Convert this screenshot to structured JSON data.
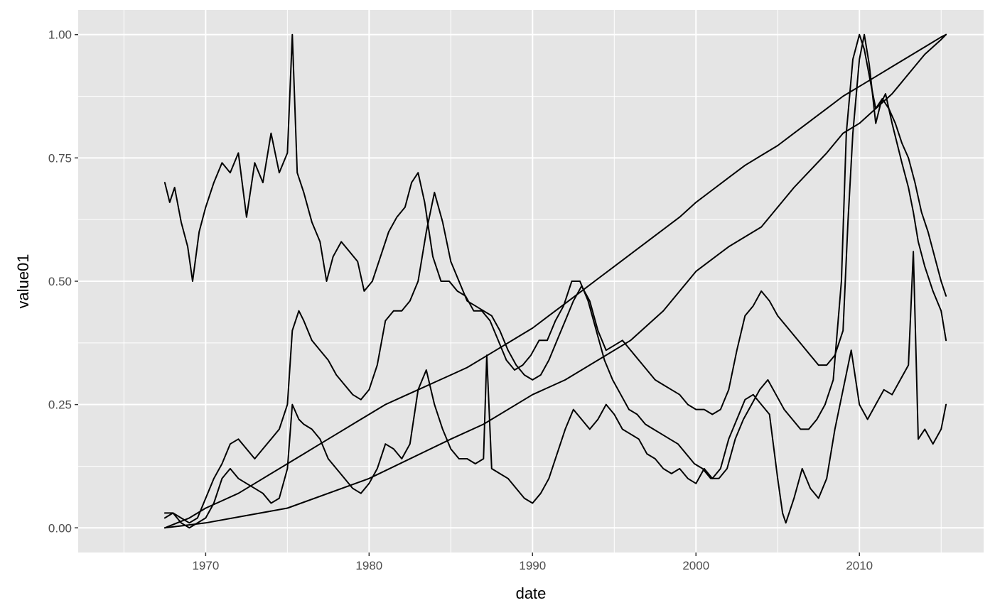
{
  "chart_data": {
    "type": "line",
    "title": "",
    "xlabel": "date",
    "ylabel": "value01",
    "xlim": [
      1962.2,
      2017.6
    ],
    "ylim": [
      -0.05,
      1.05
    ],
    "x_ticks": [
      {
        "value": 1970,
        "label": "1970"
      },
      {
        "value": 1980,
        "label": "1980"
      },
      {
        "value": 1990,
        "label": "1990"
      },
      {
        "value": 2000,
        "label": "2000"
      },
      {
        "value": 2010,
        "label": "2010"
      }
    ],
    "y_ticks": [
      {
        "value": 0,
        "label": "0.00"
      },
      {
        "value": 0.25,
        "label": "0.25"
      },
      {
        "value": 0.5,
        "label": "0.50"
      },
      {
        "value": 0.75,
        "label": "0.75"
      },
      {
        "value": 1,
        "label": "1.00"
      }
    ],
    "grid": true,
    "legend": "none",
    "colors": {
      "panel": "#e5e5e5",
      "grid": "#ffffff",
      "line": "#000000"
    },
    "series": [
      {
        "x": [
          1967.5,
          1969,
          1970,
          1971,
          1972,
          1973,
          1974,
          1975,
          1976,
          1977,
          1978,
          1979,
          1980,
          1981,
          1982,
          1983,
          1984,
          1985,
          1986,
          1987,
          1988,
          1989,
          1990,
          1991,
          1992,
          1993,
          1994,
          1995,
          1996,
          1997,
          1998,
          1999,
          2000,
          2001,
          2002,
          2003,
          2004,
          2005,
          2006,
          2007,
          2008,
          2009,
          2010,
          2011,
          2012,
          2013,
          2014,
          2015,
          2015.3
        ],
        "y": [
          0.0,
          0.02,
          0.04,
          0.055,
          0.07,
          0.09,
          0.11,
          0.13,
          0.15,
          0.17,
          0.19,
          0.21,
          0.23,
          0.25,
          0.265,
          0.28,
          0.295,
          0.31,
          0.325,
          0.345,
          0.365,
          0.385,
          0.405,
          0.43,
          0.455,
          0.48,
          0.505,
          0.53,
          0.555,
          0.58,
          0.605,
          0.63,
          0.66,
          0.685,
          0.71,
          0.735,
          0.755,
          0.775,
          0.8,
          0.825,
          0.85,
          0.875,
          0.895,
          0.915,
          0.935,
          0.955,
          0.975,
          0.995,
          1.0
        ]
      },
      {
        "x": [
          1967.5,
          1970,
          1975,
          1980,
          1985,
          1987,
          1990,
          1992,
          1994,
          1996,
          1998,
          2000,
          2002,
          2004,
          2006,
          2008,
          2009,
          2010,
          2011,
          2012,
          2013,
          2014,
          2015,
          2015.3
        ],
        "y": [
          0.0,
          0.01,
          0.04,
          0.1,
          0.18,
          0.21,
          0.27,
          0.3,
          0.34,
          0.38,
          0.44,
          0.52,
          0.57,
          0.61,
          0.69,
          0.76,
          0.8,
          0.82,
          0.85,
          0.88,
          0.92,
          0.96,
          0.99,
          1.0
        ]
      },
      {
        "x": [
          1967.5,
          1967.8,
          1968.1,
          1968.5,
          1968.9,
          1969.2,
          1969.6,
          1970,
          1970.5,
          1971,
          1971.5,
          1972,
          1972.5,
          1973,
          1973.5,
          1974,
          1974.5,
          1975,
          1975.3,
          1975.6,
          1976,
          1976.5,
          1977,
          1977.4,
          1977.8,
          1978.3,
          1978.8,
          1979.3,
          1979.7,
          1980.2,
          1980.7,
          1981.2,
          1981.7,
          1982.2,
          1982.6,
          1983,
          1983.4,
          1983.9,
          1984.4,
          1984.9,
          1985.4,
          1985.9,
          1986.4,
          1986.9,
          1987.4,
          1987.9,
          1988.4,
          1988.9,
          1989.4,
          1989.9,
          1990.4,
          1990.9,
          1991.4,
          1991.9,
          1992.4,
          1992.9,
          1993.4,
          1993.9,
          1994.4,
          1994.9,
          1995.4,
          1995.9,
          1996.4,
          1996.9,
          1997.4,
          1997.9,
          1998.4,
          1998.9,
          1999.4,
          1999.9,
          2000.4,
          2000.9,
          2001.4,
          2001.9,
          2002.4,
          2002.9,
          2003.4,
          2003.9,
          2004.4,
          2004.9,
          2005.4,
          2005.9,
          2006.4,
          2006.9,
          2007.4,
          2007.9,
          2008.4,
          2008.9,
          2009.2,
          2009.6,
          2010,
          2010.3,
          2010.7,
          2011,
          2011.4,
          2011.8,
          2012.2,
          2012.6,
          2013,
          2013.4,
          2013.8,
          2014.2,
          2014.6,
          2015,
          2015.3
        ],
        "y": [
          0.7,
          0.66,
          0.69,
          0.62,
          0.57,
          0.5,
          0.6,
          0.65,
          0.7,
          0.74,
          0.72,
          0.76,
          0.63,
          0.74,
          0.7,
          0.8,
          0.72,
          0.76,
          1.0,
          0.72,
          0.68,
          0.62,
          0.58,
          0.5,
          0.55,
          0.58,
          0.56,
          0.54,
          0.48,
          0.5,
          0.55,
          0.6,
          0.63,
          0.65,
          0.7,
          0.72,
          0.66,
          0.55,
          0.5,
          0.5,
          0.48,
          0.47,
          0.44,
          0.44,
          0.42,
          0.38,
          0.34,
          0.32,
          0.33,
          0.35,
          0.38,
          0.38,
          0.42,
          0.45,
          0.5,
          0.5,
          0.46,
          0.4,
          0.34,
          0.3,
          0.27,
          0.24,
          0.23,
          0.21,
          0.2,
          0.19,
          0.18,
          0.17,
          0.15,
          0.13,
          0.12,
          0.1,
          0.1,
          0.12,
          0.18,
          0.22,
          0.25,
          0.28,
          0.3,
          0.27,
          0.24,
          0.22,
          0.2,
          0.2,
          0.22,
          0.25,
          0.3,
          0.5,
          0.8,
          0.95,
          1.0,
          0.97,
          0.9,
          0.85,
          0.87,
          0.85,
          0.82,
          0.78,
          0.75,
          0.7,
          0.64,
          0.6,
          0.55,
          0.5,
          0.47
        ]
      },
      {
        "x": [
          1967.5,
          1968,
          1968.5,
          1969,
          1969.5,
          1970,
          1970.5,
          1971,
          1971.5,
          1972,
          1972.5,
          1973,
          1973.5,
          1974,
          1974.5,
          1975,
          1975.3,
          1975.7,
          1976,
          1976.5,
          1977,
          1977.5,
          1978,
          1978.5,
          1979,
          1979.5,
          1980,
          1980.5,
          1981,
          1981.5,
          1982,
          1982.5,
          1983,
          1983.5,
          1984,
          1984.5,
          1985,
          1985.5,
          1986,
          1986.5,
          1987,
          1987.5,
          1988,
          1988.5,
          1989,
          1989.5,
          1990,
          1990.5,
          1991,
          1991.5,
          1992,
          1992.5,
          1993,
          1993.5,
          1994,
          1994.5,
          1995,
          1995.5,
          1996,
          1996.5,
          1997,
          1997.5,
          1998,
          1998.5,
          1999,
          1999.5,
          2000,
          2000.5,
          2001,
          2001.5,
          2002,
          2002.5,
          2003,
          2003.5,
          2004,
          2004.5,
          2005,
          2005.5,
          2006,
          2006.5,
          2007,
          2007.5,
          2008,
          2008.5,
          2009,
          2009.3,
          2009.6,
          2010,
          2010.3,
          2010.6,
          2011,
          2011.3,
          2011.6,
          2012,
          2012.3,
          2012.6,
          2013,
          2013.3,
          2013.6,
          2014,
          2014.5,
          2015,
          2015.3
        ],
        "y": [
          0.03,
          0.03,
          0.02,
          0.01,
          0.02,
          0.06,
          0.1,
          0.13,
          0.17,
          0.18,
          0.16,
          0.14,
          0.16,
          0.18,
          0.2,
          0.25,
          0.4,
          0.44,
          0.42,
          0.38,
          0.36,
          0.34,
          0.31,
          0.29,
          0.27,
          0.26,
          0.28,
          0.33,
          0.42,
          0.44,
          0.44,
          0.46,
          0.5,
          0.6,
          0.68,
          0.62,
          0.54,
          0.5,
          0.46,
          0.45,
          0.44,
          0.43,
          0.4,
          0.36,
          0.33,
          0.31,
          0.3,
          0.31,
          0.34,
          0.38,
          0.42,
          0.46,
          0.49,
          0.46,
          0.4,
          0.36,
          0.37,
          0.38,
          0.36,
          0.34,
          0.32,
          0.3,
          0.29,
          0.28,
          0.27,
          0.25,
          0.24,
          0.24,
          0.23,
          0.24,
          0.28,
          0.36,
          0.43,
          0.45,
          0.48,
          0.46,
          0.43,
          0.41,
          0.39,
          0.37,
          0.35,
          0.33,
          0.33,
          0.35,
          0.4,
          0.62,
          0.8,
          0.95,
          1.0,
          0.94,
          0.82,
          0.86,
          0.88,
          0.82,
          0.78,
          0.74,
          0.69,
          0.64,
          0.58,
          0.53,
          0.48,
          0.44,
          0.38
        ]
      },
      {
        "x": [
          1967.5,
          1968,
          1968.5,
          1969,
          1969.5,
          1970,
          1970.5,
          1971,
          1971.5,
          1972,
          1972.5,
          1973,
          1973.5,
          1974,
          1974.5,
          1975,
          1975.3,
          1975.7,
          1976,
          1976.5,
          1977,
          1977.5,
          1978,
          1978.5,
          1979,
          1979.5,
          1980,
          1980.5,
          1981,
          1981.5,
          1982,
          1982.5,
          1983,
          1983.5,
          1984,
          1984.5,
          1985,
          1985.5,
          1986,
          1986.5,
          1987,
          1987.2,
          1987.5,
          1988,
          1988.5,
          1989,
          1989.5,
          1990,
          1990.5,
          1991,
          1991.5,
          1992,
          1992.5,
          1993,
          1993.5,
          1994,
          1994.5,
          1995,
          1995.5,
          1996,
          1996.5,
          1997,
          1997.5,
          1998,
          1998.5,
          1999,
          1999.5,
          2000,
          2000.5,
          2001,
          2001.5,
          2002,
          2002.5,
          2003,
          2003.5,
          2004,
          2004.5,
          2005,
          2005.3,
          2005.5,
          2006,
          2006.5,
          2007,
          2007.5,
          2008,
          2008.5,
          2009,
          2009.5,
          2010,
          2010.5,
          2011,
          2011.5,
          2012,
          2012.5,
          2013,
          2013.3,
          2013.6,
          2014,
          2014.5,
          2015,
          2015.3
        ],
        "y": [
          0.02,
          0.03,
          0.01,
          0.0,
          0.01,
          0.02,
          0.05,
          0.1,
          0.12,
          0.1,
          0.09,
          0.08,
          0.07,
          0.05,
          0.06,
          0.12,
          0.25,
          0.22,
          0.21,
          0.2,
          0.18,
          0.14,
          0.12,
          0.1,
          0.08,
          0.07,
          0.09,
          0.12,
          0.17,
          0.16,
          0.14,
          0.17,
          0.28,
          0.32,
          0.25,
          0.2,
          0.16,
          0.14,
          0.14,
          0.13,
          0.14,
          0.35,
          0.12,
          0.11,
          0.1,
          0.08,
          0.06,
          0.05,
          0.07,
          0.1,
          0.15,
          0.2,
          0.24,
          0.22,
          0.2,
          0.22,
          0.25,
          0.23,
          0.2,
          0.19,
          0.18,
          0.15,
          0.14,
          0.12,
          0.11,
          0.12,
          0.1,
          0.09,
          0.12,
          0.1,
          0.12,
          0.18,
          0.22,
          0.26,
          0.27,
          0.25,
          0.23,
          0.1,
          0.03,
          0.01,
          0.06,
          0.12,
          0.08,
          0.06,
          0.1,
          0.2,
          0.28,
          0.36,
          0.25,
          0.22,
          0.25,
          0.28,
          0.27,
          0.3,
          0.33,
          0.56,
          0.18,
          0.2,
          0.17,
          0.2,
          0.25
        ]
      }
    ]
  }
}
